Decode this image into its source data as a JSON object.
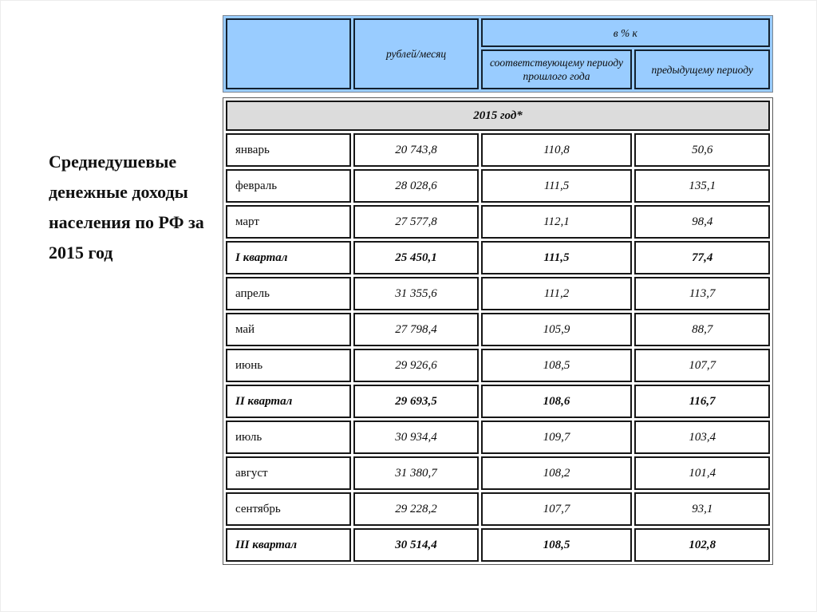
{
  "slide": {
    "title": "Среднедушевые денежные доходы населения по РФ за 2015 год"
  },
  "colors": {
    "header_bg": "#99CCFF",
    "section_bg": "#DCDCDC",
    "cell_border": "#161616"
  },
  "table": {
    "header": {
      "month_col": "",
      "rub_col": "рублей/месяц",
      "pct_col": "в % к",
      "pct_prev_year_col": "соответствующему периоду прошлого года",
      "pct_prev_period_col": "предыдущему периоду"
    },
    "section_label": "2015 год*",
    "rows": [
      {
        "label": "январь",
        "rub": "20 743,8",
        "py": "110,8",
        "pp": "50,6",
        "bold": false
      },
      {
        "label": "февраль",
        "rub": "28 028,6",
        "py": "111,5",
        "pp": "135,1",
        "bold": false
      },
      {
        "label": "март",
        "rub": "27 577,8",
        "py": "112,1",
        "pp": "98,4",
        "bold": false
      },
      {
        "label": "I квартал",
        "rub": "25 450,1",
        "py": "111,5",
        "pp": "77,4",
        "bold": true
      },
      {
        "label": "апрель",
        "rub": "31 355,6",
        "py": "111,2",
        "pp": "113,7",
        "bold": false
      },
      {
        "label": "май",
        "rub": "27 798,4",
        "py": "105,9",
        "pp": "88,7",
        "bold": false
      },
      {
        "label": "июнь",
        "rub": "29 926,6",
        "py": "108,5",
        "pp": "107,7",
        "bold": false
      },
      {
        "label": "II квартал",
        "rub": "29 693,5",
        "py": "108,6",
        "pp": "116,7",
        "bold": true
      },
      {
        "label": "июль",
        "rub": "30 934,4",
        "py": "109,7",
        "pp": "103,4",
        "bold": false
      },
      {
        "label": "август",
        "rub": "31 380,7",
        "py": "108,2",
        "pp": "101,4",
        "bold": false
      },
      {
        "label": "сентябрь",
        "rub": "29 228,2",
        "py": "107,7",
        "pp": "93,1",
        "bold": false
      },
      {
        "label": "III квартал",
        "rub": "30 514,4",
        "py": "108,5",
        "pp": "102,8",
        "bold": true
      }
    ]
  }
}
